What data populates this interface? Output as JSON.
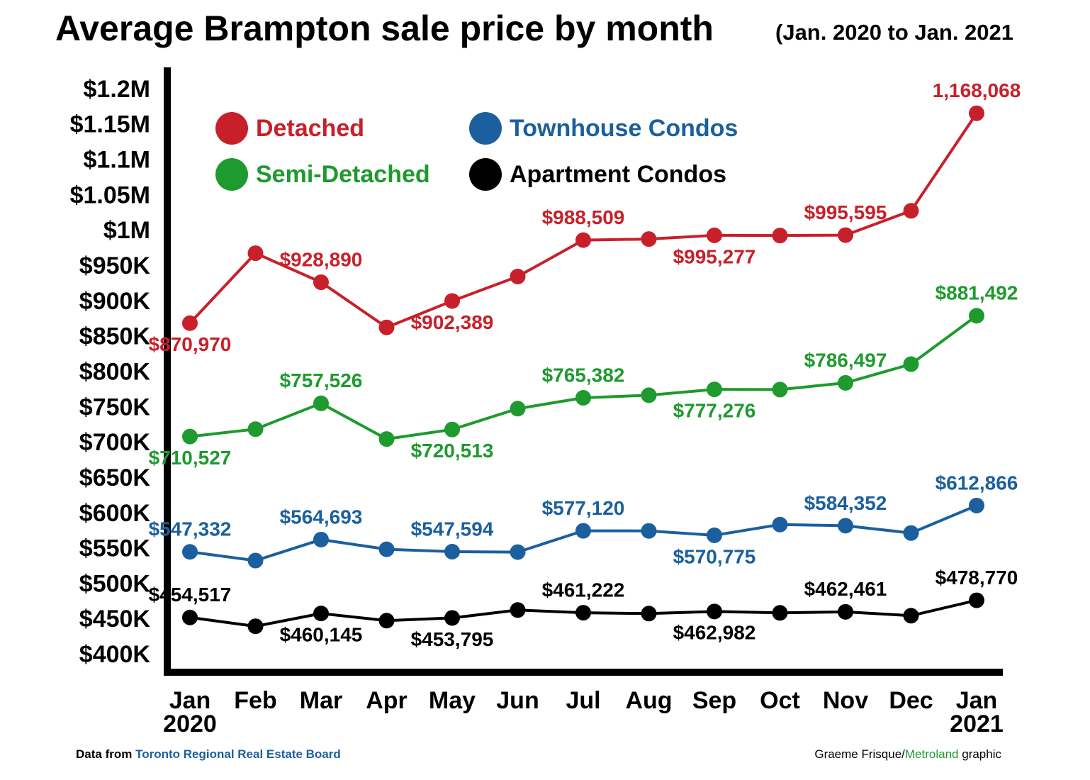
{
  "chart_data": {
    "type": "line",
    "title": "Average Brampton sale price by month",
    "subtitle": "(Jan. 2020 to Jan. 2021",
    "categories": [
      "Jan",
      "Feb",
      "Mar",
      "Apr",
      "May",
      "Jun",
      "Jul",
      "Aug",
      "Sep",
      "Oct",
      "Nov",
      "Dec",
      "Jan"
    ],
    "x_sublabels": [
      "2020",
      null,
      null,
      null,
      null,
      null,
      null,
      null,
      null,
      null,
      null,
      null,
      "2021"
    ],
    "ylim": [
      378000,
      1233000
    ],
    "yticks": [
      {
        "value": 400000,
        "label": "$400K"
      },
      {
        "value": 450000,
        "label": "$450K"
      },
      {
        "value": 500000,
        "label": "$500K"
      },
      {
        "value": 550000,
        "label": "$550K"
      },
      {
        "value": 600000,
        "label": "$600K"
      },
      {
        "value": 650000,
        "label": "$650K"
      },
      {
        "value": 700000,
        "label": "$700K"
      },
      {
        "value": 750000,
        "label": "$750K"
      },
      {
        "value": 800000,
        "label": "$800K"
      },
      {
        "value": 850000,
        "label": "$850K"
      },
      {
        "value": 900000,
        "label": "$900K"
      },
      {
        "value": 950000,
        "label": "$950K"
      },
      {
        "value": 1000000,
        "label": "$1M"
      },
      {
        "value": 1050000,
        "label": "$1.05M"
      },
      {
        "value": 1100000,
        "label": "$1.1M"
      },
      {
        "value": 1150000,
        "label": "$1.15M"
      },
      {
        "value": 1200000,
        "label": "$1.2M"
      }
    ],
    "grid": false,
    "series": [
      {
        "name": "Detached",
        "color": "#c8202a",
        "values": [
          870970,
          970000,
          928890,
          865000,
          902389,
          937000,
          988509,
          990000,
          995277,
          995000,
          995595,
          1030000,
          1168068
        ],
        "value_labels": [
          "$870,970",
          null,
          "$928,890",
          null,
          "$902,389",
          null,
          "$988,509",
          null,
          "$995,277",
          null,
          "$995,595",
          null,
          "1,168,068"
        ]
      },
      {
        "name": "Semi-Detached",
        "color": "#1e9a2e",
        "values": [
          710527,
          721000,
          757526,
          707000,
          720513,
          750000,
          765382,
          769000,
          777276,
          777000,
          786497,
          813000,
          881492
        ],
        "value_labels": [
          "$710,527",
          null,
          "$757,526",
          null,
          "$720,513",
          null,
          "$765,382",
          null,
          "$777,276",
          null,
          "$786,497",
          null,
          "$881,492"
        ]
      },
      {
        "name": "Townhouse Condos",
        "color": "#1b5f9e",
        "values": [
          547332,
          535000,
          564693,
          551000,
          547594,
          547000,
          577120,
          577000,
          570775,
          586000,
          584352,
          574000,
          612866
        ],
        "value_labels": [
          "$547,332",
          null,
          "$564,693",
          null,
          "$547,594",
          null,
          "$577,120",
          null,
          "$570,775",
          null,
          "$584,352",
          null,
          "$612,866"
        ]
      },
      {
        "name": "Apartment Condos",
        "color": "#000000",
        "values": [
          454517,
          442000,
          460145,
          450000,
          453795,
          465000,
          461222,
          460000,
          462982,
          461000,
          462461,
          457000,
          478770
        ],
        "value_labels": [
          "$454,517",
          null,
          "$460,145",
          null,
          "$453,795",
          null,
          "$461,222",
          null,
          "$462,982",
          null,
          "$462,461",
          null,
          "$478,770"
        ]
      }
    ],
    "source": {
      "prefix": "Data from",
      "name": "Toronto Regional Real Estate Board"
    },
    "credit": {
      "author": "Graeme Frisque/",
      "org": "Metroland",
      "suffix": "graphic"
    }
  }
}
